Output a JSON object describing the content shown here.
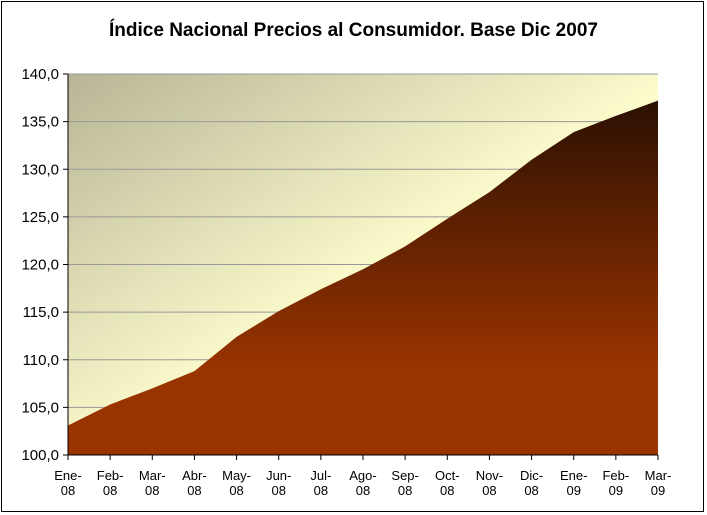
{
  "chart_data": {
    "type": "area",
    "title": "Índice Nacional Precios al Consumidor. Base Dic 2007",
    "categories": [
      [
        "Ene-",
        "08"
      ],
      [
        "Feb-",
        "08"
      ],
      [
        "Mar-",
        "08"
      ],
      [
        "Abr-",
        "08"
      ],
      [
        "May-",
        "08"
      ],
      [
        "Jun-",
        "08"
      ],
      [
        "Jul-",
        "08"
      ],
      [
        "Ago-",
        "08"
      ],
      [
        "Sep-",
        "08"
      ],
      [
        "Oct-",
        "08"
      ],
      [
        "Nov-",
        "08"
      ],
      [
        "Dic-",
        "08"
      ],
      [
        "Ene-",
        "09"
      ],
      [
        "Feb-",
        "09"
      ],
      [
        "Mar-",
        "09"
      ]
    ],
    "values": [
      103.1,
      105.3,
      107.0,
      108.8,
      112.4,
      115.1,
      117.4,
      119.5,
      121.9,
      124.8,
      127.6,
      131.0,
      133.9,
      135.6,
      137.2
    ],
    "ylim": [
      100,
      140
    ],
    "yticks": [
      "100,0",
      "105,0",
      "110,0",
      "115,0",
      "120,0",
      "125,0",
      "130,0",
      "135,0",
      "140,0"
    ],
    "ytick_values": [
      100,
      105,
      110,
      115,
      120,
      125,
      130,
      135,
      140
    ],
    "grid": true,
    "legend": "none",
    "colors": {
      "plot_bg_start": "#b7b596",
      "plot_bg_end": "#ffffcf",
      "area_top": "#2b1002",
      "area_bottom": "#993300",
      "gridline": "#999999"
    }
  }
}
